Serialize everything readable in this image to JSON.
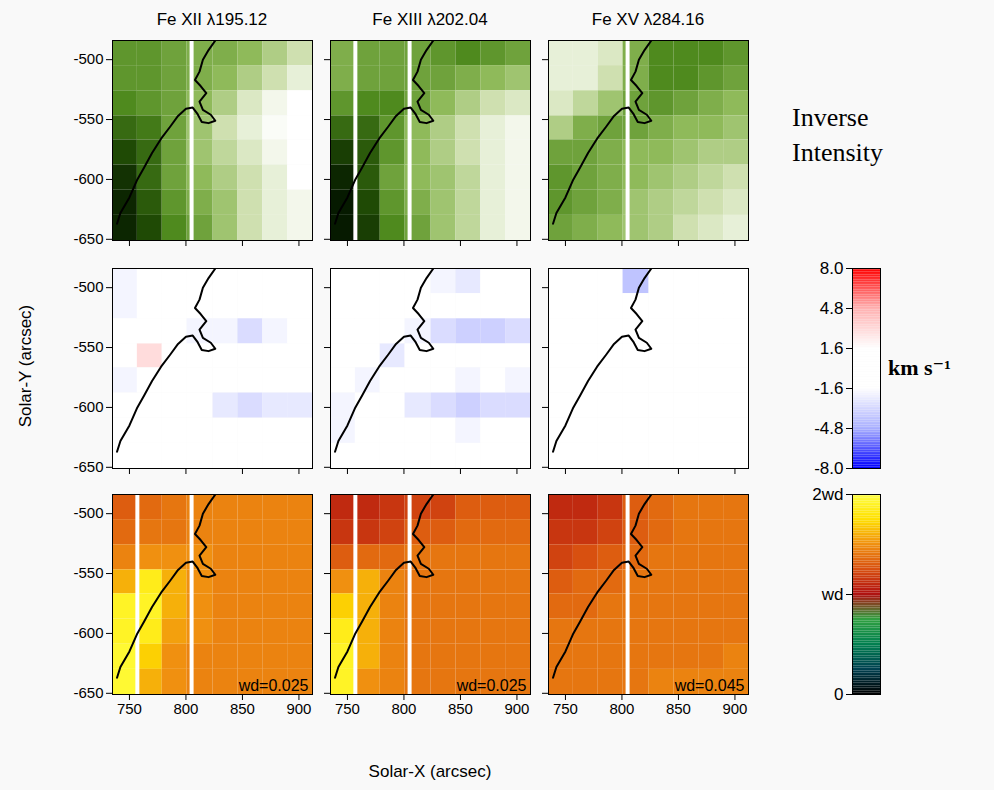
{
  "chart_data": {
    "type": "heatmap",
    "titles": [
      "Fe XII λ195.12",
      "Fe XIII λ202.04",
      "Fe XV λ284.16"
    ],
    "x_label": "Solar-X (arcsec)",
    "y_label": "Solar-Y (arcsec)",
    "xlim": [
      735,
      912
    ],
    "ylim": [
      -651,
      -484
    ],
    "xticks": [
      750,
      800,
      850,
      900
    ],
    "yticks": [
      -650,
      -600,
      -550,
      -500
    ],
    "x_edges": [
      735,
      757,
      779,
      801,
      824,
      846,
      868,
      890,
      912
    ],
    "y_edges": [
      -484,
      -505,
      -526,
      -547,
      -567,
      -588,
      -609,
      -630,
      -651
    ],
    "contour": {
      "x": [
        739,
        742,
        750,
        757,
        763,
        770,
        778,
        786,
        793,
        800,
        806,
        810,
        814,
        820,
        826,
        822,
        815,
        812,
        818,
        813,
        808,
        812,
        815,
        820,
        826
      ],
      "y": [
        -637,
        -628,
        -615,
        -600,
        -590,
        -578,
        -566,
        -556,
        -547,
        -541,
        -540,
        -545,
        -552,
        -553,
        -551,
        -546,
        -542,
        -535,
        -528,
        -522,
        -517,
        -510,
        -500,
        -492,
        -484
      ]
    },
    "rows": [
      {
        "label": "Inverse Intensity",
        "range": [
          0,
          1
        ],
        "colors": [
          "#ffffff",
          "#cfe0b0",
          "#8fba5a",
          "#4f8a1e",
          "#1f4a05",
          "#061a00"
        ],
        "panels": [
          {
            "missing_x": [
              805
            ],
            "cells": [
              [
                0.55,
                0.55,
                0.5,
                0.45,
                0.45,
                0.4,
                0.3,
                0.2
              ],
              [
                0.55,
                0.55,
                0.5,
                0.45,
                0.4,
                0.3,
                0.2,
                0.1
              ],
              [
                0.6,
                0.55,
                0.5,
                0.4,
                0.3,
                0.15,
                0.05,
                0.0
              ],
              [
                0.7,
                0.65,
                0.5,
                0.35,
                0.2,
                0.1,
                0.02,
                0.0
              ],
              [
                0.8,
                0.7,
                0.5,
                0.35,
                0.25,
                0.15,
                0.05,
                0.0
              ],
              [
                0.9,
                0.7,
                0.5,
                0.4,
                0.3,
                0.2,
                0.1,
                0.0
              ],
              [
                0.95,
                0.75,
                0.55,
                0.45,
                0.35,
                0.2,
                0.1,
                0.05
              ],
              [
                0.95,
                0.8,
                0.6,
                0.5,
                0.35,
                0.2,
                0.1,
                0.05
              ]
            ]
          },
          {
            "missing_x": [
              757,
              805
            ],
            "cells": [
              [
                0.45,
                0.5,
                0.5,
                0.5,
                0.55,
                0.6,
                0.55,
                0.5
              ],
              [
                0.45,
                0.5,
                0.5,
                0.5,
                0.5,
                0.45,
                0.4,
                0.35
              ],
              [
                0.55,
                0.6,
                0.6,
                0.5,
                0.4,
                0.3,
                0.2,
                0.15
              ],
              [
                0.7,
                0.7,
                0.55,
                0.4,
                0.3,
                0.2,
                0.1,
                0.05
              ],
              [
                0.85,
                0.75,
                0.55,
                0.4,
                0.3,
                0.2,
                0.1,
                0.05
              ],
              [
                0.95,
                0.75,
                0.5,
                0.4,
                0.35,
                0.25,
                0.1,
                0.05
              ],
              [
                1.0,
                0.8,
                0.55,
                0.45,
                0.35,
                0.25,
                0.1,
                0.05
              ],
              [
                1.0,
                0.85,
                0.6,
                0.5,
                0.35,
                0.25,
                0.1,
                0.05
              ]
            ]
          },
          {
            "missing_x": [
              805
            ],
            "cells": [
              [
                0.1,
                0.1,
                0.15,
                0.45,
                0.6,
                0.6,
                0.6,
                0.55
              ],
              [
                0.1,
                0.1,
                0.2,
                0.45,
                0.6,
                0.6,
                0.55,
                0.5
              ],
              [
                0.15,
                0.25,
                0.35,
                0.5,
                0.55,
                0.5,
                0.45,
                0.4
              ],
              [
                0.3,
                0.45,
                0.5,
                0.5,
                0.45,
                0.4,
                0.4,
                0.35
              ],
              [
                0.5,
                0.5,
                0.45,
                0.4,
                0.4,
                0.35,
                0.3,
                0.3
              ],
              [
                0.55,
                0.5,
                0.45,
                0.4,
                0.35,
                0.3,
                0.25,
                0.2
              ],
              [
                0.55,
                0.5,
                0.45,
                0.35,
                0.3,
                0.25,
                0.2,
                0.15
              ],
              [
                0.5,
                0.45,
                0.4,
                0.35,
                0.3,
                0.2,
                0.15,
                0.1
              ]
            ]
          }
        ]
      },
      {
        "label": "km s⁻¹",
        "range": [
          -8,
          8
        ],
        "ticks": [
          {
            "value": 8,
            "label": "8.0"
          },
          4.8,
          1.6,
          -1.6,
          -4.8,
          {
            "value": -8,
            "label": "-8.0"
          }
        ],
        "colors": [
          "#0000ff",
          "#aab0ff",
          "#ffffff",
          "#ffffff",
          "#ffb0b0",
          "#ff0000"
        ],
        "panels": [
          {
            "missing_x": [],
            "cells": [
              [
                -2,
                0,
                0,
                0,
                0,
                -1.5,
                -1.5,
                0
              ],
              [
                -2,
                0,
                0,
                0,
                0,
                0,
                0,
                0
              ],
              [
                -1.5,
                0,
                0,
                -2,
                -2,
                -3,
                -2,
                -1.5
              ],
              [
                -1,
                3,
                0,
                0,
                0,
                0,
                0,
                0
              ],
              [
                -2,
                0,
                0,
                0,
                0,
                -1,
                0,
                0
              ],
              [
                -1.5,
                0,
                0,
                0,
                -2.5,
                -3,
                -2.5,
                -2.5
              ],
              [
                0,
                0,
                0,
                0,
                -1.5,
                0,
                -1.5,
                0
              ],
              [
                0,
                0,
                0,
                0,
                0,
                0,
                0,
                0
              ]
            ]
          },
          {
            "missing_x": [],
            "cells": [
              [
                0,
                0,
                0,
                0,
                -2,
                -2.5,
                -1.5,
                -1
              ],
              [
                0,
                0,
                0,
                0,
                0,
                0,
                -1,
                0
              ],
              [
                -1.5,
                0,
                0,
                -2,
                -3,
                -3.5,
                -3.5,
                -3
              ],
              [
                -1.5,
                0,
                -2.5,
                0,
                0,
                0,
                0,
                0
              ],
              [
                -1.5,
                -2,
                -1.5,
                0,
                0,
                -2,
                -1.5,
                -2
              ],
              [
                -2,
                -1.5,
                0,
                -2.5,
                -3,
                -3.5,
                -3,
                -3
              ],
              [
                -2,
                0,
                0,
                0,
                -1.5,
                -2,
                -1.5,
                -1.5
              ],
              [
                0,
                0,
                0,
                0,
                0,
                0,
                0,
                0
              ]
            ]
          },
          {
            "missing_x": [],
            "cells": [
              [
                0,
                0,
                0,
                -4,
                0,
                0,
                0,
                0
              ],
              [
                0,
                0,
                0,
                0,
                0,
                0,
                0,
                0
              ],
              [
                0,
                0,
                0,
                0,
                0,
                0,
                0,
                0
              ],
              [
                0,
                0,
                0,
                0,
                0,
                0,
                0,
                0
              ],
              [
                0,
                0,
                0,
                0,
                0,
                -1,
                0,
                0
              ],
              [
                0,
                0,
                0,
                0,
                0,
                0,
                0,
                0
              ],
              [
                0,
                0,
                0,
                0,
                0,
                0,
                0,
                0
              ],
              [
                0,
                0,
                0,
                0,
                0,
                0,
                0,
                0
              ]
            ]
          }
        ]
      },
      {
        "range": [
          0,
          2
        ],
        "ticks": [
          {
            "value": 2,
            "label": "2wd"
          },
          {
            "value": 1,
            "label": "wd"
          },
          0
        ],
        "colors": [
          "#000000",
          "#004050",
          "#008050",
          "#30a040",
          "#b01010",
          "#d85010",
          "#f09010",
          "#ffe000",
          "#ffff40"
        ],
        "panels": [
          {
            "annotation": "wd=0.025",
            "missing_x": [
              757,
              805
            ],
            "cells": [
              [
                1.3,
                1.35,
                1.4,
                1.45,
                1.45,
                1.45,
                1.45,
                1.45
              ],
              [
                1.35,
                1.4,
                1.4,
                1.45,
                1.45,
                1.45,
                1.45,
                1.45
              ],
              [
                1.45,
                1.5,
                1.5,
                1.5,
                1.45,
                1.45,
                1.45,
                1.45
              ],
              [
                1.6,
                1.85,
                1.6,
                1.5,
                1.45,
                1.45,
                1.45,
                1.45
              ],
              [
                1.9,
                1.9,
                1.6,
                1.5,
                1.45,
                1.45,
                1.45,
                1.45
              ],
              [
                1.9,
                1.85,
                1.55,
                1.5,
                1.45,
                1.45,
                1.45,
                1.45
              ],
              [
                1.95,
                1.7,
                1.5,
                1.45,
                1.45,
                1.45,
                1.45,
                1.45
              ],
              [
                1.95,
                1.6,
                1.5,
                1.45,
                1.45,
                1.45,
                1.45,
                1.45
              ]
            ]
          },
          {
            "annotation": "wd=0.025",
            "missing_x": [
              757,
              805
            ],
            "cells": [
              [
                1.1,
                1.1,
                1.15,
                1.2,
                1.2,
                1.3,
                1.3,
                1.3
              ],
              [
                1.15,
                1.15,
                1.2,
                1.3,
                1.3,
                1.35,
                1.35,
                1.35
              ],
              [
                1.3,
                1.35,
                1.35,
                1.4,
                1.4,
                1.4,
                1.4,
                1.4
              ],
              [
                1.5,
                1.6,
                1.45,
                1.4,
                1.4,
                1.4,
                1.4,
                1.4
              ],
              [
                1.7,
                1.6,
                1.45,
                1.4,
                1.4,
                1.4,
                1.4,
                1.4
              ],
              [
                1.85,
                1.6,
                1.45,
                1.4,
                1.4,
                1.4,
                1.4,
                1.4
              ],
              [
                1.9,
                1.6,
                1.45,
                1.4,
                1.4,
                1.4,
                1.4,
                1.4
              ],
              [
                1.9,
                1.5,
                1.45,
                1.4,
                1.4,
                1.4,
                1.4,
                1.4
              ]
            ]
          },
          {
            "annotation": "wd=0.045",
            "missing_x": [
              805
            ],
            "cells": [
              [
                1.1,
                1.1,
                1.15,
                1.3,
                1.35,
                1.4,
                1.4,
                1.4
              ],
              [
                1.15,
                1.15,
                1.2,
                1.3,
                1.35,
                1.4,
                1.4,
                1.4
              ],
              [
                1.2,
                1.25,
                1.3,
                1.35,
                1.4,
                1.4,
                1.4,
                1.4
              ],
              [
                1.3,
                1.35,
                1.35,
                1.4,
                1.4,
                1.4,
                1.4,
                1.4
              ],
              [
                1.35,
                1.35,
                1.4,
                1.4,
                1.4,
                1.4,
                1.4,
                1.4
              ],
              [
                1.4,
                1.4,
                1.4,
                1.4,
                1.4,
                1.4,
                1.4,
                1.4
              ],
              [
                1.4,
                1.4,
                1.4,
                1.4,
                1.4,
                1.4,
                1.4,
                1.45
              ],
              [
                1.4,
                1.4,
                1.4,
                1.4,
                1.45,
                1.45,
                1.45,
                1.45
              ]
            ]
          }
        ]
      }
    ]
  }
}
